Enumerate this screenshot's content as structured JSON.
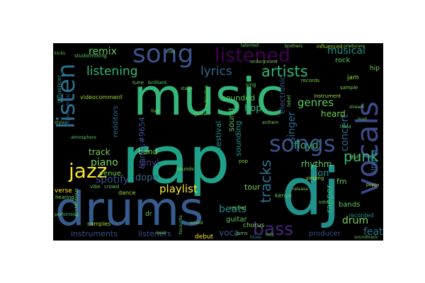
{
  "palette": {
    "background": "#000000",
    "page": "#ffffff",
    "purple": "#46327e",
    "dark_purple": "#440154",
    "indigo": "#3b528b",
    "blue": "#365c8d",
    "teal": "#277f8e",
    "aqua": "#1fa187",
    "green": "#35b779",
    "light_green": "#7ad151",
    "lime": "#a0da39",
    "yellow": "#fde725"
  },
  "words": [
    {
      "text": "music",
      "color": "#35b779"
    },
    {
      "text": "rap",
      "color": "#1fa187"
    },
    {
      "text": "drums",
      "color": "#365c8d"
    },
    {
      "text": "dj",
      "color": "#21918c"
    },
    {
      "text": "song",
      "color": "#3b528b"
    },
    {
      "text": "listened",
      "color": "#440154"
    },
    {
      "text": "listen",
      "color": "#2c728e"
    },
    {
      "text": "vocals",
      "color": "#3e4989"
    },
    {
      "text": "artists",
      "color": "#35b779"
    },
    {
      "text": "songs",
      "color": "#3b528b"
    },
    {
      "text": "jazz",
      "color": "#fde725"
    },
    {
      "text": "bass",
      "color": "#482878"
    },
    {
      "text": "listening",
      "color": "#35b779"
    },
    {
      "text": "lyrics",
      "color": "#31688e"
    },
    {
      "text": "remix",
      "color": "#5ec962"
    },
    {
      "text": "musical",
      "color": "#21918c"
    },
    {
      "text": "tracks",
      "color": "#2c728e"
    },
    {
      "text": "spotify",
      "color": "#3b528b"
    },
    {
      "text": "playlist",
      "color": "#fde725"
    },
    {
      "text": "piano",
      "color": "#7ad151"
    },
    {
      "text": "punk",
      "color": "#35b779"
    },
    {
      "text": "floyd",
      "color": "#35b779"
    },
    {
      "text": "genres",
      "color": "#5ec962"
    },
    {
      "text": "beats",
      "color": "#21918c"
    },
    {
      "text": "concert",
      "color": "#31688e"
    },
    {
      "text": "rhythm",
      "color": "#5ec962"
    },
    {
      "text": "drum",
      "color": "#7ad151"
    },
    {
      "text": "feat",
      "color": "#2c728e"
    },
    {
      "text": "track",
      "color": "#7ad151"
    },
    {
      "text": "dope",
      "color": "#31688e"
    },
    {
      "text": "band",
      "color": "#7ad151"
    },
    {
      "text": "vinyl",
      "color": "#443983"
    },
    {
      "text": "hop",
      "color": "#35b779"
    },
    {
      "text": "heard",
      "color": "#7ad151"
    },
    {
      "text": "sounded",
      "color": "#5ec962"
    },
    {
      "text": "singer",
      "color": "#31688e"
    },
    {
      "text": "festival",
      "color": "#21918c"
    },
    {
      "text": "sound",
      "color": "#5ec962"
    },
    {
      "text": "instruments",
      "color": "#3b528b"
    },
    {
      "text": "listeners",
      "color": "#3b528b"
    },
    {
      "text": "tour",
      "color": "#7ad151"
    },
    {
      "text": "voca",
      "color": "#3b528b"
    },
    {
      "text": "bon",
      "color": "#21918c"
    },
    {
      "text": "fm",
      "color": "#5ec962"
    },
    {
      "text": "guitar",
      "color": "#5ec962"
    },
    {
      "text": "chorus",
      "color": "#7ad151"
    },
    {
      "text": "producer",
      "color": "#3b528b"
    },
    {
      "text": "bands",
      "color": "#5ec962"
    },
    {
      "text": "venue",
      "color": "#7ad151"
    },
    {
      "text": "sounding",
      "color": "#21918c"
    },
    {
      "text": "electronic",
      "color": "#3b528b"
    },
    {
      "text": "singles",
      "color": "#2c728e"
    },
    {
      "text": "&amp;#9654",
      "color": "#3b528b"
    },
    {
      "text": "kenye",
      "color": "#5ec962"
    },
    {
      "text": "recorded",
      "color": "#21918c"
    },
    {
      "text": "rapper",
      "color": "#35b779"
    },
    {
      "text": "video",
      "color": "#a0da39"
    },
    {
      "text": "comment",
      "color": "#a0da39"
    },
    {
      "text": "studio",
      "color": "#5ec962"
    },
    {
      "text": "mixing",
      "color": "#5ec962"
    },
    {
      "text": "debut",
      "color": "#fde725"
    },
    {
      "text": "dance",
      "color": "#a0da39"
    },
    {
      "text": "crowd",
      "color": "#5ec962"
    },
    {
      "text": "vibe",
      "color": "#5ec962"
    },
    {
      "text": "verse",
      "color": "#fde725"
    },
    {
      "text": "hip",
      "color": "#7ad151"
    },
    {
      "text": "rock",
      "color": "#5ec962"
    },
    {
      "text": "jam",
      "color": "#a0da39"
    },
    {
      "text": "live",
      "color": "#7ad151"
    },
    {
      "text": "stage",
      "color": "#7ad151"
    },
    {
      "text": "intro",
      "color": "#5ec962"
    },
    {
      "text": "records",
      "color": "#7ad151"
    },
    {
      "text": "influencer",
      "color": "#21918c"
    },
    {
      "text": "experimental",
      "color": "#3b528b"
    },
    {
      "text": "redditors",
      "color": "#31688e"
    },
    {
      "text": "genre",
      "color": "#7ad151"
    },
    {
      "text": "label",
      "color": "#5ec962"
    },
    {
      "text": "samples",
      "color": "#a0da39"
    },
    {
      "text": "instrument",
      "color": "#a0da39"
    },
    {
      "text": "pretentious",
      "color": "#5ec962"
    },
    {
      "text": "hearing",
      "color": "#7ad151"
    },
    {
      "text": "singing",
      "color": "#a0da39"
    },
    {
      "text": "record",
      "color": "#7ad151"
    },
    {
      "text": "sample",
      "color": "#7ad151"
    },
    {
      "text": "tune",
      "color": "#7ad151"
    },
    {
      "text": "brilliant",
      "color": "#5ec962"
    },
    {
      "text": "kicks",
      "color": "#5ec962"
    },
    {
      "text": "stuff",
      "color": "#7ad151"
    },
    {
      "text": "anthem",
      "color": "#7ad151"
    },
    {
      "text": "loud",
      "color": "#5ec962"
    },
    {
      "text": "sounds",
      "color": "#7ad151"
    },
    {
      "text": "subjective",
      "color": "#7ad151"
    },
    {
      "text": "influenced",
      "color": "#a0da39"
    },
    {
      "text": "producers",
      "color": "#7ad151"
    },
    {
      "text": "sing",
      "color": "#5ec962"
    },
    {
      "text": "titled",
      "color": "#5ec962"
    },
    {
      "text": "styles",
      "color": "#5ec962"
    },
    {
      "text": "underground",
      "color": "#7ad151"
    },
    {
      "text": "atmosphere",
      "color": "#5ec962"
    },
    {
      "text": "dr",
      "color": "#7ad151"
    },
    {
      "text": "blues",
      "color": "#21918c"
    },
    {
      "text": "brothers",
      "color": "#7ad151"
    },
    {
      "text": "performing",
      "color": "#5ec962"
    },
    {
      "text": "talented",
      "color": "#5ec962"
    },
    {
      "text": "mixed",
      "color": "#7ad151"
    },
    {
      "text": "cool",
      "color": "#7ad151"
    },
    {
      "text": "poppy",
      "color": "#a0da39"
    },
    {
      "text": "release",
      "color": "#7ad151"
    },
    {
      "text": "favourite",
      "color": "#5ec962"
    },
    {
      "text": "stream",
      "color": "#7ad151"
    },
    {
      "text": "jams",
      "color": "#5ec962"
    },
    {
      "text": "mic",
      "color": "#5ec962"
    },
    {
      "text": "pop",
      "color": "#7ad151"
    },
    {
      "text": "soundtrack",
      "color": "#5ec962"
    },
    {
      "text": "beat",
      "color": "#7ad151"
    }
  ]
}
